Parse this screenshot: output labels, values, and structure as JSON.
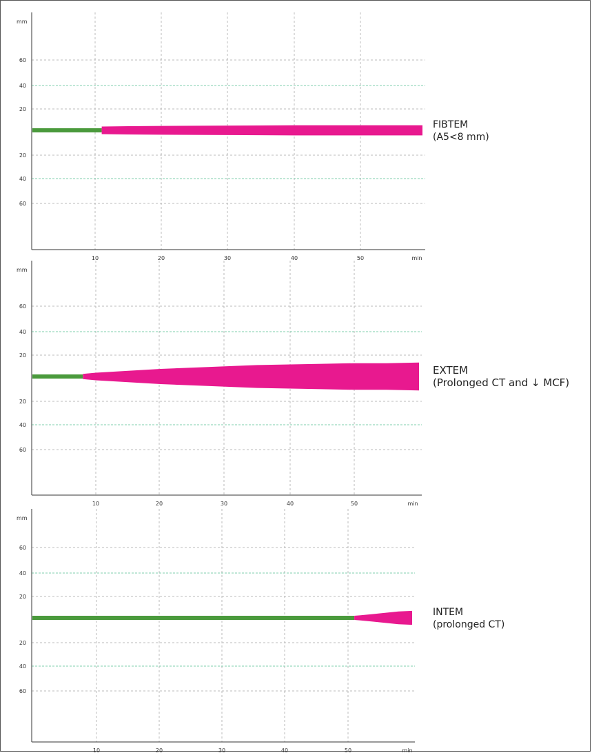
{
  "colors": {
    "lag": "#4a9a3c",
    "clot": "#e8198f",
    "grid_minor": "#bbbbbb",
    "grid_major": "#7fcfae",
    "axis": "#333333"
  },
  "chart_data": [
    {
      "type": "area",
      "name": "FIBTEM",
      "label_lines": [
        "FIBTEM",
        "(A5<8 mm)"
      ],
      "ylabel": "mm",
      "xlabel": "min",
      "y_ticks_above": [
        "60",
        "40",
        "20"
      ],
      "y_ticks_below": [
        "20",
        "40",
        "60"
      ],
      "x_ticks": [
        "10",
        "20",
        "30",
        "40",
        "50",
        "min"
      ],
      "xlim": [
        0,
        60
      ],
      "ylim": [
        -80,
        80
      ],
      "ct_min": 11,
      "amplitude": {
        "x": [
          11,
          15,
          20,
          30,
          40,
          50,
          60
        ],
        "mm": [
          6,
          6.5,
          7,
          7.5,
          8,
          8,
          8
        ]
      }
    },
    {
      "type": "area",
      "name": "EXTEM",
      "label_lines": [
        "EXTEM",
        "(Prolonged CT and ↓ MCF)"
      ],
      "ylabel": "mm",
      "xlabel": "min",
      "y_ticks_above": [
        "60",
        "40",
        "20"
      ],
      "y_ticks_below": [
        "20",
        "40",
        "60"
      ],
      "x_ticks": [
        "10",
        "20",
        "30",
        "40",
        "50",
        "min"
      ],
      "xlim": [
        0,
        60
      ],
      "ylim": [
        -80,
        80
      ],
      "ct_min": 8,
      "amplitude": {
        "x": [
          8,
          10,
          15,
          20,
          25,
          30,
          35,
          40,
          45,
          50,
          55,
          60
        ],
        "mm": [
          4,
          6,
          9,
          12,
          14,
          16,
          18,
          19,
          20,
          21,
          21,
          22
        ]
      }
    },
    {
      "type": "area",
      "name": "INTEM",
      "label_lines": [
        "INTEM",
        "(prolonged CT)"
      ],
      "ylabel": "mm",
      "xlabel": "min",
      "y_ticks_above": [
        "60",
        "40",
        "20"
      ],
      "y_ticks_below": [
        "20",
        "40",
        "60"
      ],
      "x_ticks": [
        "10",
        "20",
        "30",
        "40",
        "50",
        "min"
      ],
      "xlim": [
        0,
        60
      ],
      "ylim": [
        -80,
        80
      ],
      "ct_min": 51,
      "amplitude": {
        "x": [
          51,
          52,
          54,
          56,
          58,
          60
        ],
        "mm": [
          3,
          4,
          6,
          8,
          10,
          11
        ]
      }
    }
  ]
}
